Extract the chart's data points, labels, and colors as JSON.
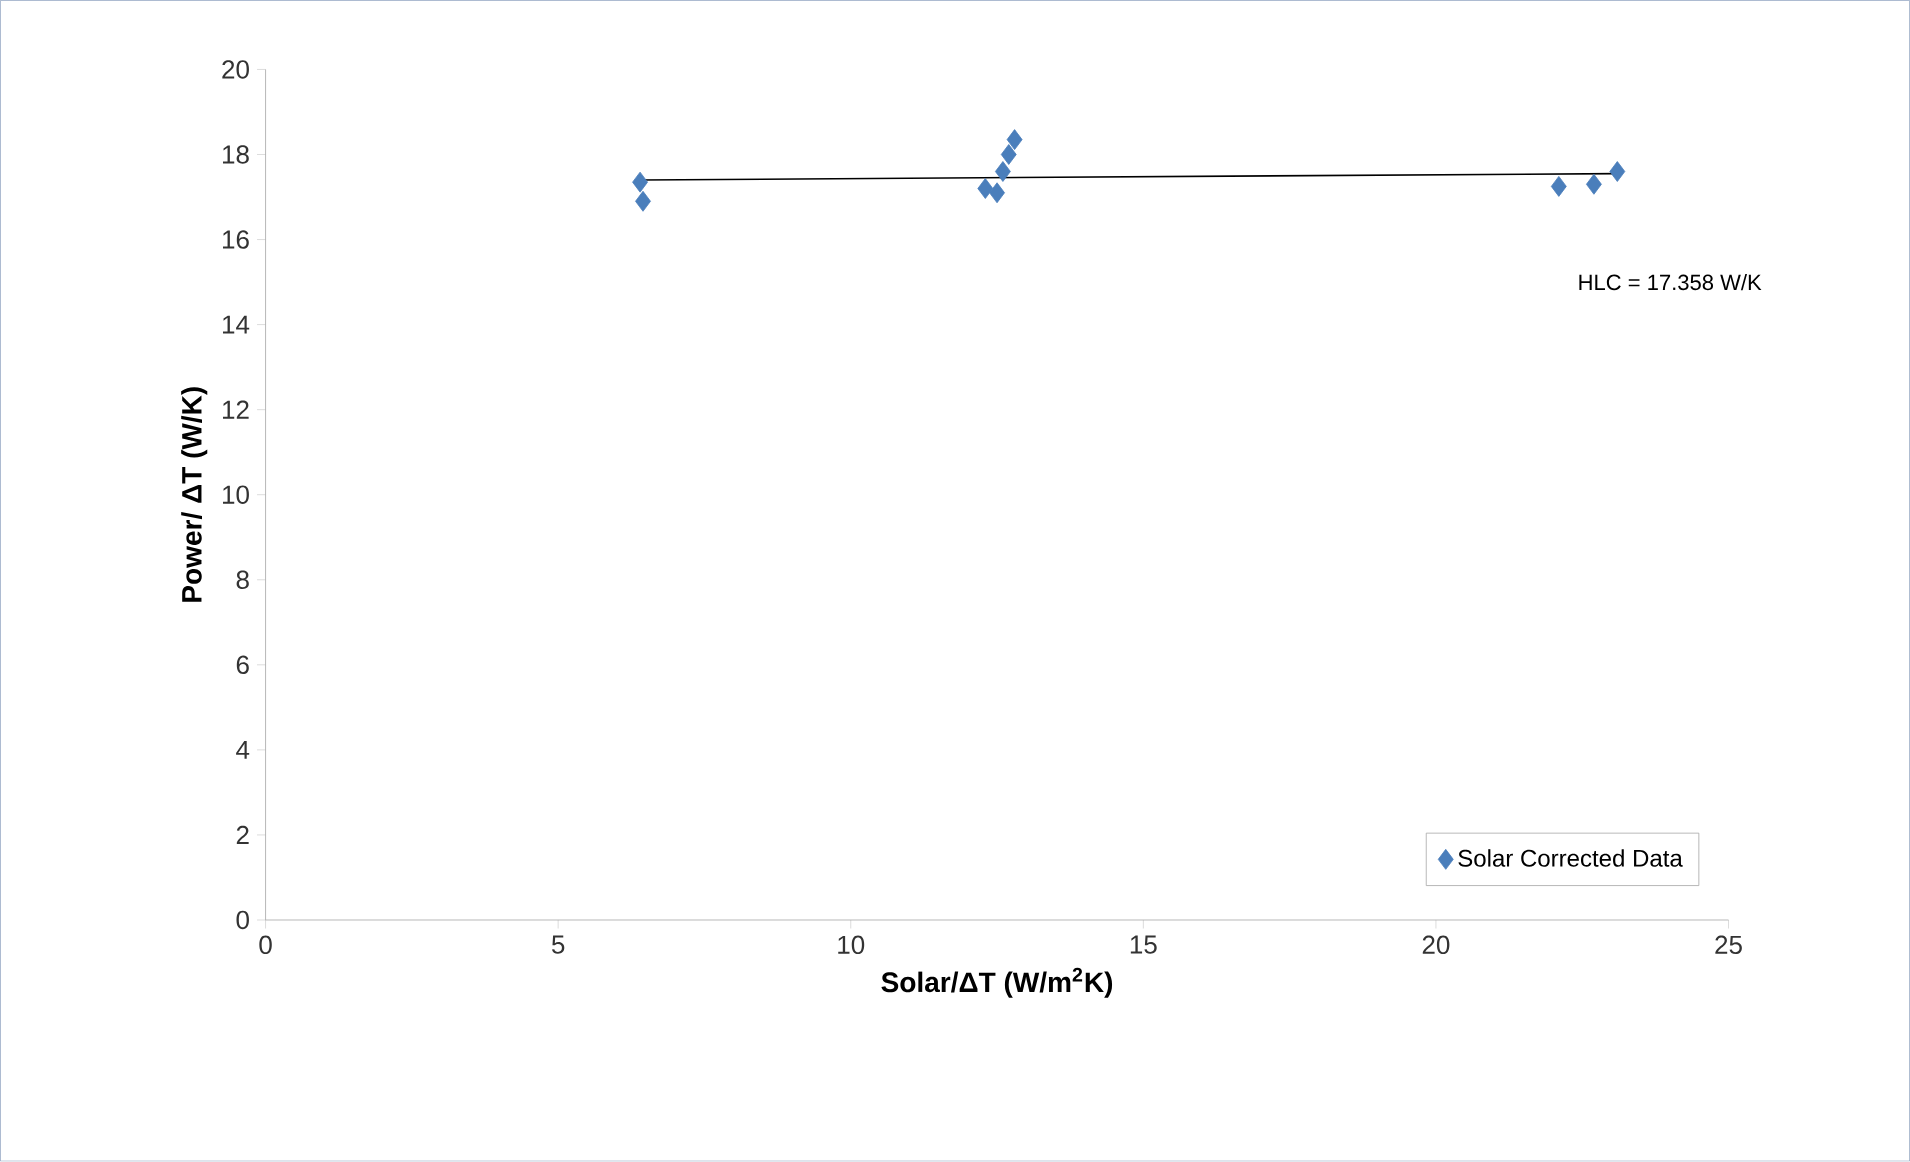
{
  "chart_data": {
    "type": "scatter",
    "xlabel": "Solar/ΔT (W/m$^{2}$K)",
    "ylabel": "Power/ ΔT (W/K)",
    "xlim": [
      0,
      25
    ],
    "ylim": [
      0,
      20
    ],
    "xticks": [
      0,
      5,
      10,
      15,
      20,
      25
    ],
    "yticks": [
      0,
      2,
      4,
      6,
      8,
      10,
      12,
      14,
      16,
      18,
      20
    ],
    "grid": false,
    "legend": "bottom right",
    "marker": "diamond",
    "annotations": [
      "HLC = 17.358 W/K"
    ],
    "series": [
      {
        "name": "Solar Corrected Data",
        "color": "#4a7ebb",
        "x": [
          6.4,
          6.45,
          12.3,
          12.5,
          12.6,
          12.7,
          12.8,
          22.1,
          22.7,
          23.1
        ],
        "values": [
          17.35,
          16.9,
          17.2,
          17.1,
          17.6,
          18.0,
          18.35,
          17.25,
          17.3,
          17.6
        ]
      },
      {
        "type": "line",
        "color": "#000000",
        "marker": "none",
        "x": [
          6.4,
          23.1
        ],
        "values": [
          17.4,
          17.55
        ]
      }
    ]
  }
}
